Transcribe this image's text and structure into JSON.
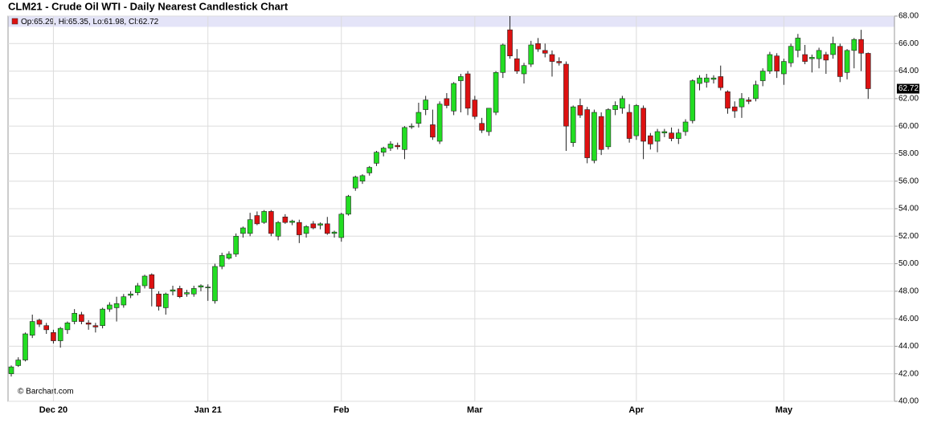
{
  "chart_data": {
    "type": "candlestick",
    "title": "CLM21 - Crude Oil WTI - Daily Nearest Candlestick Chart",
    "legend": "Op:65.29, Hi:65.35, Lo:61.98, Cl:62.72",
    "credit": "© Barchart.com",
    "up_color": "#22dd22",
    "down_color": "#dd1111",
    "grid": true,
    "ylim": [
      40,
      68
    ],
    "yticks": [
      {
        "value": 40,
        "label": "40.00"
      },
      {
        "value": 42,
        "label": "42.00"
      },
      {
        "value": 44,
        "label": "44.00"
      },
      {
        "value": 46,
        "label": "46.00"
      },
      {
        "value": 48,
        "label": "48.00"
      },
      {
        "value": 50,
        "label": "50.00"
      },
      {
        "value": 52,
        "label": "52.00"
      },
      {
        "value": 54,
        "label": "54.00"
      },
      {
        "value": 56,
        "label": "56.00"
      },
      {
        "value": 58,
        "label": "58.00"
      },
      {
        "value": 60,
        "label": "60.00"
      },
      {
        "value": 62,
        "label": "62.00"
      },
      {
        "value": 64,
        "label": "64.00"
      },
      {
        "value": 66,
        "label": "66.00"
      },
      {
        "value": 68,
        "label": "68.00"
      }
    ],
    "categories": [
      null,
      null,
      null,
      null,
      null,
      null,
      "Dec 20",
      null,
      null,
      null,
      null,
      null,
      null,
      null,
      null,
      null,
      null,
      null,
      null,
      null,
      null,
      null,
      null,
      null,
      null,
      null,
      null,
      null,
      "Jan 21",
      null,
      null,
      null,
      null,
      null,
      null,
      null,
      null,
      null,
      null,
      null,
      null,
      null,
      null,
      null,
      null,
      null,
      null,
      "Feb",
      null,
      null,
      null,
      null,
      null,
      null,
      null,
      null,
      null,
      null,
      null,
      null,
      null,
      null,
      null,
      null,
      null,
      null,
      "Mar",
      null,
      null,
      null,
      null,
      null,
      null,
      null,
      null,
      null,
      null,
      null,
      null,
      null,
      null,
      null,
      null,
      null,
      null,
      null,
      null,
      null,
      null,
      "Apr",
      null,
      null,
      null,
      null,
      null,
      null,
      null,
      null,
      null,
      null,
      null,
      null,
      null,
      null,
      null,
      null,
      null,
      null,
      null,
      null,
      "May",
      null,
      null,
      null,
      null,
      null,
      null,
      null,
      null,
      null,
      null,
      null,
      null
    ],
    "candles": [
      [
        42.0,
        42.6,
        41.8,
        42.5
      ],
      [
        42.6,
        43.2,
        42.5,
        43.0
      ],
      [
        43.0,
        45.0,
        42.9,
        44.9
      ],
      [
        44.8,
        46.3,
        44.6,
        45.8
      ],
      [
        45.9,
        46.0,
        45.4,
        45.6
      ],
      [
        45.5,
        45.7,
        44.9,
        45.2
      ],
      [
        45.0,
        45.2,
        44.2,
        44.4
      ],
      [
        44.4,
        45.4,
        43.9,
        45.3
      ],
      [
        45.2,
        45.8,
        44.9,
        45.7
      ],
      [
        45.8,
        46.7,
        45.6,
        46.4
      ],
      [
        46.3,
        46.5,
        45.6,
        45.8
      ],
      [
        45.7,
        45.9,
        45.2,
        45.6
      ],
      [
        45.5,
        45.7,
        45.0,
        45.4
      ],
      [
        45.5,
        46.8,
        45.3,
        46.7
      ],
      [
        46.7,
        47.2,
        46.5,
        47.0
      ],
      [
        46.8,
        47.6,
        45.8,
        47.1
      ],
      [
        47.0,
        47.8,
        46.8,
        47.6
      ],
      [
        47.7,
        48.0,
        47.5,
        47.8
      ],
      [
        47.9,
        48.6,
        47.7,
        48.4
      ],
      [
        48.4,
        49.2,
        48.2,
        49.1
      ],
      [
        49.2,
        49.3,
        46.9,
        48.2
      ],
      [
        47.8,
        48.0,
        46.6,
        46.9
      ],
      [
        46.8,
        47.9,
        46.3,
        47.8
      ],
      [
        48.0,
        48.4,
        47.7,
        48.1
      ],
      [
        48.2,
        48.4,
        47.5,
        47.6
      ],
      [
        47.8,
        48.1,
        47.6,
        47.9
      ],
      [
        47.8,
        48.4,
        47.6,
        48.2
      ],
      [
        48.3,
        48.5,
        48.0,
        48.4
      ],
      [
        48.3,
        48.5,
        47.3,
        48.3
      ],
      [
        47.3,
        50.0,
        47.1,
        49.8
      ],
      [
        49.8,
        50.8,
        49.6,
        50.6
      ],
      [
        50.4,
        50.9,
        50.3,
        50.7
      ],
      [
        50.7,
        52.2,
        50.5,
        52.0
      ],
      [
        52.2,
        52.7,
        51.9,
        52.6
      ],
      [
        52.2,
        53.7,
        52.0,
        53.2
      ],
      [
        53.5,
        53.8,
        52.8,
        52.9
      ],
      [
        53.0,
        53.9,
        52.9,
        53.8
      ],
      [
        53.8,
        53.9,
        52.0,
        52.2
      ],
      [
        52.0,
        53.1,
        51.7,
        53.0
      ],
      [
        53.4,
        53.6,
        52.9,
        53.0
      ],
      [
        53.0,
        53.2,
        52.8,
        53.1
      ],
      [
        53.0,
        53.2,
        51.5,
        52.1
      ],
      [
        52.2,
        52.8,
        51.9,
        52.7
      ],
      [
        52.9,
        53.1,
        52.5,
        52.6
      ],
      [
        52.8,
        53.0,
        52.5,
        52.9
      ],
      [
        52.9,
        53.4,
        52.1,
        52.2
      ],
      [
        52.2,
        52.4,
        51.9,
        52.3
      ],
      [
        51.9,
        53.7,
        51.6,
        53.6
      ],
      [
        53.6,
        55.0,
        53.5,
        54.9
      ],
      [
        55.5,
        56.4,
        55.3,
        56.3
      ],
      [
        56.0,
        56.5,
        55.8,
        56.4
      ],
      [
        56.6,
        57.1,
        56.4,
        57.0
      ],
      [
        57.3,
        58.2,
        57.1,
        58.1
      ],
      [
        58.1,
        58.5,
        57.8,
        58.4
      ],
      [
        58.4,
        58.9,
        58.2,
        58.7
      ],
      [
        58.6,
        58.8,
        58.3,
        58.5
      ],
      [
        58.3,
        60.0,
        57.6,
        59.9
      ],
      [
        60.0,
        60.2,
        59.8,
        60.0
      ],
      [
        60.2,
        61.7,
        59.9,
        61.0
      ],
      [
        61.2,
        62.2,
        60.8,
        61.9
      ],
      [
        60.1,
        61.2,
        59.0,
        59.2
      ],
      [
        58.9,
        61.8,
        58.7,
        61.6
      ],
      [
        62.0,
        62.4,
        61.3,
        61.5
      ],
      [
        61.1,
        63.2,
        60.8,
        63.1
      ],
      [
        63.3,
        63.8,
        61.0,
        63.6
      ],
      [
        63.8,
        64.0,
        60.8,
        61.3
      ],
      [
        61.9,
        62.2,
        60.5,
        60.7
      ],
      [
        60.2,
        60.6,
        59.5,
        59.7
      ],
      [
        59.6,
        61.3,
        59.3,
        61.3
      ],
      [
        61.0,
        64.0,
        60.8,
        63.9
      ],
      [
        63.9,
        66.0,
        63.5,
        65.9
      ],
      [
        67.0,
        68.0,
        64.9,
        65.1
      ],
      [
        64.9,
        65.6,
        63.8,
        64.0
      ],
      [
        63.8,
        64.6,
        63.1,
        64.4
      ],
      [
        64.5,
        66.2,
        64.3,
        65.9
      ],
      [
        66.0,
        66.4,
        65.4,
        65.6
      ],
      [
        65.5,
        66.0,
        65.0,
        65.3
      ],
      [
        65.2,
        65.5,
        63.6,
        64.7
      ],
      [
        64.7,
        65.0,
        64.4,
        64.6
      ],
      [
        64.5,
        64.7,
        58.2,
        60.0
      ],
      [
        58.8,
        61.5,
        58.5,
        61.4
      ],
      [
        61.5,
        62.0,
        60.6,
        60.8
      ],
      [
        61.2,
        61.4,
        57.3,
        57.7
      ],
      [
        57.5,
        61.2,
        57.3,
        61.0
      ],
      [
        60.7,
        61.0,
        57.9,
        58.3
      ],
      [
        58.5,
        61.3,
        58.3,
        61.2
      ],
      [
        61.2,
        61.8,
        60.8,
        61.5
      ],
      [
        61.3,
        62.2,
        60.9,
        62.0
      ],
      [
        61.0,
        61.6,
        58.8,
        59.1
      ],
      [
        59.3,
        61.6,
        59.0,
        61.5
      ],
      [
        61.3,
        61.5,
        57.6,
        58.9
      ],
      [
        59.3,
        59.5,
        58.3,
        58.7
      ],
      [
        58.9,
        59.8,
        58.1,
        59.6
      ],
      [
        59.5,
        59.8,
        59.2,
        59.6
      ],
      [
        59.5,
        59.9,
        58.9,
        59.1
      ],
      [
        59.1,
        59.8,
        58.7,
        59.5
      ],
      [
        59.6,
        60.5,
        59.3,
        60.3
      ],
      [
        60.4,
        63.4,
        60.2,
        63.3
      ],
      [
        63.1,
        63.7,
        62.6,
        63.5
      ],
      [
        63.2,
        63.8,
        62.8,
        63.5
      ],
      [
        63.4,
        63.7,
        63.1,
        63.5
      ],
      [
        63.6,
        64.4,
        62.6,
        62.8
      ],
      [
        62.5,
        62.6,
        60.9,
        61.3
      ],
      [
        61.4,
        61.8,
        60.6,
        61.1
      ],
      [
        61.4,
        62.4,
        60.6,
        62.0
      ],
      [
        61.9,
        62.1,
        61.6,
        61.8
      ],
      [
        62.0,
        63.3,
        61.8,
        63.0
      ],
      [
        63.3,
        64.2,
        62.9,
        64.0
      ],
      [
        64.0,
        65.4,
        63.8,
        65.2
      ],
      [
        65.1,
        65.3,
        63.5,
        64.0
      ],
      [
        63.8,
        64.9,
        63.0,
        64.7
      ],
      [
        64.6,
        66.0,
        64.3,
        65.8
      ],
      [
        65.5,
        66.7,
        65.0,
        66.4
      ],
      [
        65.2,
        65.9,
        64.5,
        64.7
      ],
      [
        64.9,
        65.2,
        63.9,
        65.0
      ],
      [
        64.9,
        65.7,
        64.2,
        65.5
      ],
      [
        65.2,
        65.4,
        63.8,
        64.8
      ],
      [
        65.2,
        66.5,
        64.9,
        66.0
      ],
      [
        65.8,
        66.0,
        63.2,
        63.6
      ],
      [
        63.9,
        65.6,
        63.4,
        65.5
      ],
      [
        65.5,
        66.4,
        64.2,
        66.3
      ],
      [
        66.3,
        67.0,
        64.0,
        65.3
      ],
      [
        65.29,
        65.35,
        61.98,
        62.72
      ]
    ]
  }
}
